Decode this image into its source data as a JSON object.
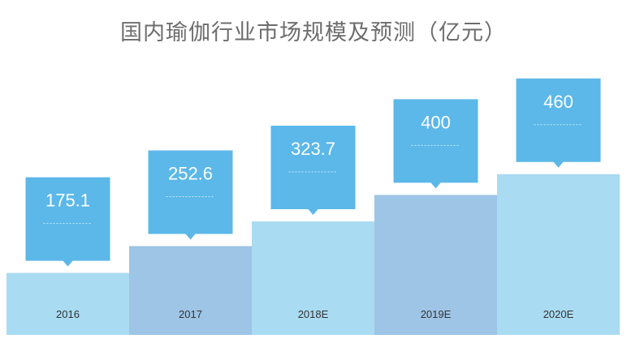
{
  "chart_data": {
    "type": "bar",
    "title": "国内瑜伽行业市场规模及预测（亿元）",
    "categories": [
      "2016",
      "2017",
      "2018E",
      "2019E",
      "2020E"
    ],
    "values": [
      175.1,
      252.6,
      323.7,
      400,
      460
    ],
    "value_labels": [
      "175.1",
      "252.6",
      "323.7",
      "400",
      "460"
    ],
    "xlabel": "",
    "ylabel": "",
    "ylim": [
      0,
      500
    ],
    "grid": false,
    "legend": "none"
  },
  "colors": {
    "bar_light": "#a9dbf2",
    "bar_mid": "#9ec4e6",
    "callout": "#5bb8e8",
    "title": "#6d6d6d"
  }
}
